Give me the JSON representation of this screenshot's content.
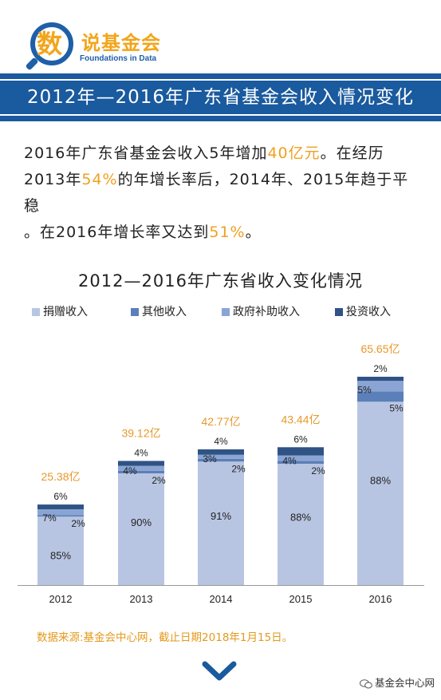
{
  "logo": {
    "badge": "数",
    "title": "说基金会",
    "subtitle": "Foundations in Data"
  },
  "banner": {
    "title": "2012年—2016年广东省基金会收入情况变化"
  },
  "intro": {
    "line1_a": "2016年广东省基金会收入5年增加",
    "line1_hl": "40亿元",
    "line1_b": "。在经历",
    "line2_a": "2013年",
    "line2_hl": "54%",
    "line2_b": "的年增长率后，2014年、2015年趋于平稳",
    "line3_a": "。在2016年增长率又达到",
    "line3_hl": "51%",
    "line3_b": "。"
  },
  "colors": {
    "banner": "#1a5a9e",
    "highlight": "#f0a020",
    "donation": "#b8c5e2",
    "other": "#5b7fb8",
    "government": "#8aa5d4",
    "investment": "#2f5385"
  },
  "chart_data": {
    "type": "bar",
    "title": "2012—2016年广东省收入变化情况",
    "categories": [
      "2012",
      "2013",
      "2014",
      "2015",
      "2016"
    ],
    "totals": [
      25.38,
      39.12,
      42.77,
      43.44,
      65.65
    ],
    "total_labels": [
      "25.38亿",
      "39.12亿",
      "42.77亿",
      "43.44亿",
      "65.65亿"
    ],
    "series": [
      {
        "name": "捐赠收入",
        "key": "donation",
        "values": [
          85,
          90,
          91,
          88,
          88
        ],
        "labels": [
          "85%",
          "90%",
          "91%",
          "88%",
          "88%"
        ]
      },
      {
        "name": "其他收入",
        "key": "other",
        "values": [
          2,
          2,
          2,
          2,
          5
        ],
        "labels": [
          "2%",
          "2%",
          "2%",
          "2%",
          "5%"
        ]
      },
      {
        "name": "政府补助收入",
        "key": "government",
        "values": [
          7,
          4,
          3,
          4,
          5
        ],
        "labels": [
          "7%",
          "4%",
          "3%",
          "4%",
          "5%"
        ]
      },
      {
        "name": "投资收入",
        "key": "investment",
        "values": [
          6,
          4,
          4,
          6,
          2
        ],
        "labels": [
          "6%",
          "4%",
          "4%",
          "6%",
          "2%"
        ]
      }
    ],
    "unit": "亿",
    "stack_order_bottom_to_top": [
      "donation",
      "other",
      "government",
      "investment"
    ],
    "grid": false,
    "legend": "top"
  },
  "source": "数据来源:基金会中心网，截止日期2018年1月15日。",
  "footer": {
    "brand": "基金会中心网"
  }
}
